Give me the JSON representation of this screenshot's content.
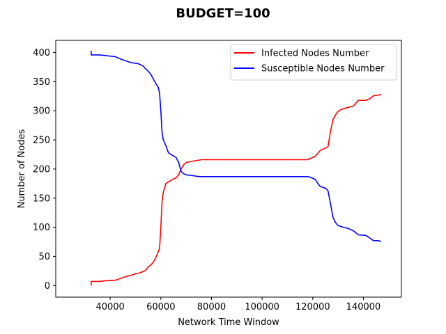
{
  "chart_data": {
    "type": "line",
    "title": "BUDGET=100",
    "xlabel": "Network Time Window",
    "ylabel": "Number of Nodes",
    "xlim": [
      18500,
      155000
    ],
    "ylim": [
      -20,
      421
    ],
    "xticks": [
      40000,
      60000,
      80000,
      100000,
      120000,
      140000
    ],
    "yticks": [
      0,
      50,
      100,
      150,
      200,
      250,
      300,
      350,
      400
    ],
    "legend_position": "upper-right",
    "grid": false,
    "series": [
      {
        "name": "Infected Nodes Number",
        "color": "#ff0000",
        "points": [
          [
            32500,
            0
          ],
          [
            32500,
            7
          ],
          [
            36000,
            7
          ],
          [
            38000,
            8
          ],
          [
            42000,
            9
          ],
          [
            44000,
            12
          ],
          [
            46000,
            15
          ],
          [
            48000,
            17
          ],
          [
            50000,
            20
          ],
          [
            52000,
            22
          ],
          [
            54000,
            26
          ],
          [
            55000,
            32
          ],
          [
            56000,
            35
          ],
          [
            57000,
            40
          ],
          [
            58000,
            48
          ],
          [
            59000,
            58
          ],
          [
            59500,
            64
          ],
          [
            60000,
            100
          ],
          [
            60500,
            145
          ],
          [
            61000,
            160
          ],
          [
            62000,
            175
          ],
          [
            63000,
            178
          ],
          [
            65000,
            183
          ],
          [
            66000,
            185
          ],
          [
            67000,
            190
          ],
          [
            68000,
            200
          ],
          [
            69000,
            207
          ],
          [
            70000,
            211
          ],
          [
            72000,
            213
          ],
          [
            76000,
            216
          ],
          [
            80000,
            216
          ],
          [
            100000,
            216
          ],
          [
            110000,
            216
          ],
          [
            118000,
            216
          ],
          [
            119000,
            218
          ],
          [
            121000,
            222
          ],
          [
            123000,
            232
          ],
          [
            125000,
            236
          ],
          [
            126000,
            238
          ],
          [
            127000,
            265
          ],
          [
            128000,
            285
          ],
          [
            129000,
            293
          ],
          [
            130000,
            299
          ],
          [
            131000,
            302
          ],
          [
            134000,
            306
          ],
          [
            136000,
            308
          ],
          [
            138000,
            318
          ],
          [
            141000,
            318
          ],
          [
            143000,
            322
          ],
          [
            144000,
            326
          ],
          [
            146000,
            327
          ],
          [
            147000,
            328
          ]
        ]
      },
      {
        "name": "Susceptible Nodes Number",
        "color": "#0000ff",
        "points": [
          [
            32500,
            403
          ],
          [
            32500,
            396
          ],
          [
            36000,
            396
          ],
          [
            38000,
            395
          ],
          [
            42000,
            393
          ],
          [
            44000,
            389
          ],
          [
            46000,
            386
          ],
          [
            48000,
            383
          ],
          [
            51000,
            381
          ],
          [
            53000,
            377
          ],
          [
            54000,
            372
          ],
          [
            55000,
            368
          ],
          [
            56000,
            363
          ],
          [
            57000,
            355
          ],
          [
            58000,
            347
          ],
          [
            59000,
            340
          ],
          [
            59500,
            330
          ],
          [
            60000,
            300
          ],
          [
            60500,
            262
          ],
          [
            61000,
            250
          ],
          [
            62000,
            240
          ],
          [
            63000,
            228
          ],
          [
            64000,
            225
          ],
          [
            66000,
            220
          ],
          [
            67000,
            212
          ],
          [
            68000,
            196
          ],
          [
            69000,
            192
          ],
          [
            70000,
            190
          ],
          [
            72000,
            189
          ],
          [
            75000,
            187
          ],
          [
            80000,
            187
          ],
          [
            100000,
            187
          ],
          [
            110000,
            187
          ],
          [
            118000,
            187
          ],
          [
            119000,
            186
          ],
          [
            121000,
            182
          ],
          [
            122000,
            175
          ],
          [
            123000,
            170
          ],
          [
            125000,
            167
          ],
          [
            126000,
            163
          ],
          [
            127000,
            140
          ],
          [
            128000,
            117
          ],
          [
            129000,
            108
          ],
          [
            130000,
            103
          ],
          [
            132000,
            100
          ],
          [
            134000,
            98
          ],
          [
            136000,
            94
          ],
          [
            138000,
            87
          ],
          [
            141000,
            86
          ],
          [
            143000,
            80
          ],
          [
            144000,
            77
          ],
          [
            146000,
            77
          ],
          [
            147000,
            75
          ]
        ]
      }
    ]
  }
}
